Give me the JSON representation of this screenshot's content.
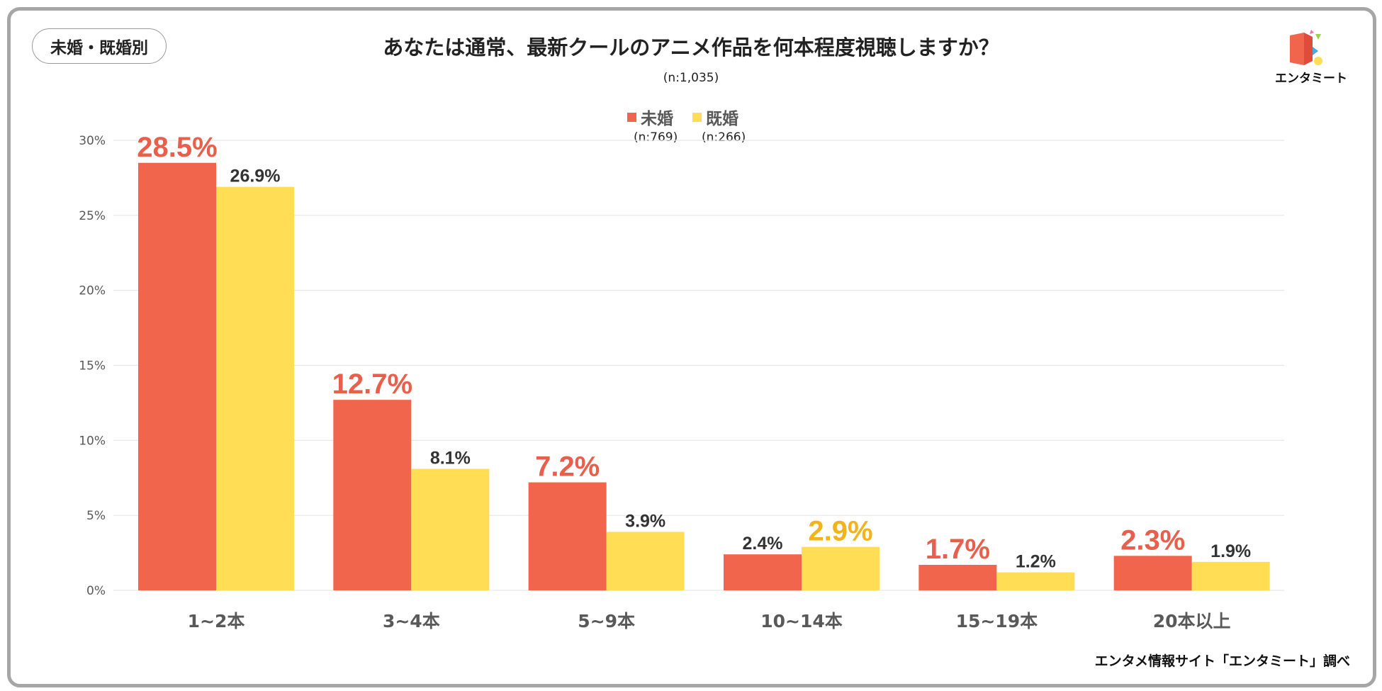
{
  "badge": "未婚・既婚別",
  "logo_text": "エンタミート",
  "source": "エンタメ情報サイト「エンタミート」調べ",
  "colors": {
    "unmarried": "#f0654b",
    "married": "#ffdd55",
    "unmarried_label": "#e8604b",
    "married_label": "#f2b31b",
    "dark_label": "#333333",
    "axis_text": "#595959",
    "grid": "#e6e6e6"
  },
  "legend": {
    "unmarried": {
      "name": "未婚",
      "n": "(n:769)"
    },
    "married": {
      "name": "既婚",
      "n": "(n:266)"
    }
  },
  "chart_data": {
    "type": "bar",
    "title": "あなたは通常、最新クールのアニメ作品を何本程度視聴しますか？",
    "subtitle": "(n:1,035)",
    "categories": [
      "1~2本",
      "3~4本",
      "5~9本",
      "10~14本",
      "15~19本",
      "20本以上"
    ],
    "series": [
      {
        "name": "未婚",
        "values": [
          28.5,
          12.7,
          7.2,
          2.4,
          1.7,
          2.3
        ],
        "labels": [
          "28.5%",
          "12.7%",
          "7.2%",
          "2.4%",
          "1.7%",
          "2.3%"
        ],
        "highlight": [
          true,
          true,
          true,
          false,
          true,
          true
        ]
      },
      {
        "name": "既婚",
        "values": [
          26.9,
          8.1,
          3.9,
          2.9,
          1.2,
          1.9
        ],
        "labels": [
          "26.9%",
          "8.1%",
          "3.9%",
          "2.9%",
          "1.2%",
          "1.9%"
        ],
        "highlight": [
          false,
          false,
          false,
          true,
          false,
          false
        ]
      }
    ],
    "yticks": [
      "0%",
      "5%",
      "10%",
      "15%",
      "20%",
      "25%",
      "30%"
    ],
    "ytick_values": [
      0,
      5,
      10,
      15,
      20,
      25,
      30
    ],
    "ylim": [
      0,
      30
    ],
    "grid": true,
    "legend_position": "top-center"
  }
}
